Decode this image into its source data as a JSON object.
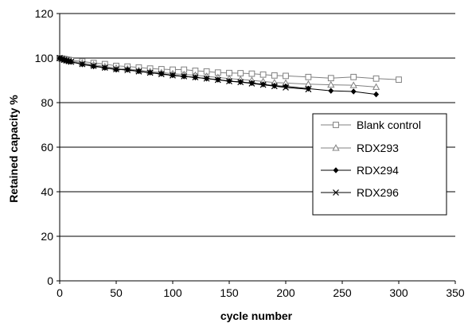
{
  "chart_data": {
    "type": "line",
    "title": "",
    "xlabel": "cycle number",
    "ylabel": "Retained capacity %",
    "xlim": [
      0,
      350
    ],
    "ylim": [
      0,
      120
    ],
    "x_ticks": [
      "0",
      "50",
      "100",
      "150",
      "200",
      "250",
      "300",
      "350"
    ],
    "y_ticks": [
      "0",
      "20",
      "40",
      "60",
      "80",
      "100",
      "120"
    ],
    "grid": "horizontal",
    "legend_position": "right",
    "series": [
      {
        "name": "Blank control",
        "marker": "open-square",
        "color": "#808080",
        "x": [
          0,
          2,
          4,
          6,
          8,
          10,
          20,
          30,
          40,
          50,
          60,
          70,
          80,
          90,
          100,
          110,
          120,
          130,
          140,
          150,
          160,
          170,
          180,
          190,
          200,
          220,
          240,
          260,
          280,
          300
        ],
        "y": [
          100,
          99.8,
          99.6,
          99.4,
          99.2,
          99,
          98.5,
          97.8,
          97.3,
          96.5,
          96.2,
          95.8,
          95.3,
          95,
          94.8,
          94.8,
          94.3,
          94,
          93.5,
          93.3,
          93.2,
          93,
          92.6,
          92.2,
          92,
          91.5,
          91,
          91.5,
          90.8,
          90.3
        ]
      },
      {
        "name": "RDX293",
        "marker": "open-triangle",
        "color": "#808080",
        "x": [
          0,
          2,
          4,
          6,
          8,
          10,
          20,
          30,
          40,
          50,
          60,
          70,
          80,
          90,
          100,
          110,
          120,
          130,
          140,
          150,
          160,
          170,
          180,
          190,
          200,
          220,
          240,
          260,
          280
        ],
        "y": [
          100,
          99.6,
          99.3,
          99,
          98.8,
          98.6,
          97.8,
          97,
          96.2,
          95.5,
          95.2,
          94.5,
          94,
          93.5,
          93,
          92.6,
          92.3,
          91.8,
          91.3,
          90.8,
          90.4,
          90,
          89.5,
          89,
          88.8,
          88.3,
          88,
          87.8,
          87
        ]
      },
      {
        "name": "RDX294",
        "marker": "filled-diamond",
        "color": "#000000",
        "x": [
          0,
          2,
          4,
          6,
          8,
          10,
          20,
          30,
          40,
          50,
          60,
          70,
          80,
          90,
          100,
          110,
          120,
          130,
          140,
          150,
          160,
          170,
          180,
          190,
          200,
          220,
          240,
          260,
          280
        ],
        "y": [
          100,
          99.5,
          99.2,
          98.9,
          98.6,
          98.3,
          97.2,
          96.3,
          95.6,
          94.8,
          94.8,
          94.1,
          93.5,
          93,
          92.3,
          91.8,
          91.3,
          90.8,
          90.3,
          89.7,
          89.3,
          88.8,
          88.2,
          87.6,
          87.3,
          86.3,
          85.3,
          85,
          83.7
        ]
      },
      {
        "name": "RDX296",
        "marker": "x",
        "color": "#000000",
        "x": [
          0,
          2,
          4,
          6,
          8,
          10,
          20,
          30,
          40,
          50,
          60,
          70,
          80,
          90,
          100,
          110,
          120,
          130,
          140,
          150,
          160,
          170,
          180,
          190,
          200,
          220
        ],
        "y": [
          100,
          99.6,
          99.2,
          98.9,
          98.6,
          98.3,
          97.3,
          96.5,
          95.7,
          95,
          94.6,
          94,
          93.4,
          92.8,
          92.2,
          91.8,
          91.4,
          90.8,
          90.2,
          89.6,
          89.2,
          88.6,
          88,
          87.4,
          86.8,
          86
        ]
      }
    ]
  }
}
